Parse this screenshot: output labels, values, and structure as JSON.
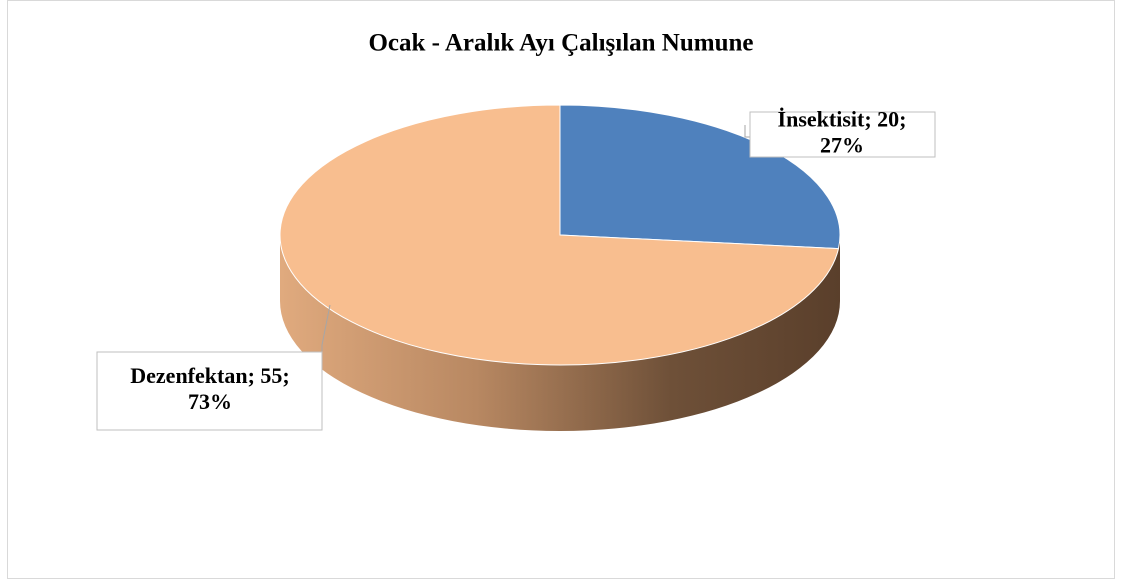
{
  "chart_data": {
    "type": "pie",
    "title": "Ocak - Aralık Ayı Çalışılan Numune",
    "categories": [
      "İnsektisit",
      "Dezenfektan"
    ],
    "values": [
      20,
      55
    ],
    "value_labels": [
      [
        "İnsektisit; 20;",
        "27%"
      ],
      [
        "Dezenfektan; 55;",
        "73%"
      ]
    ],
    "colors": [
      "#4f81bd",
      "#f8be8f"
    ]
  }
}
